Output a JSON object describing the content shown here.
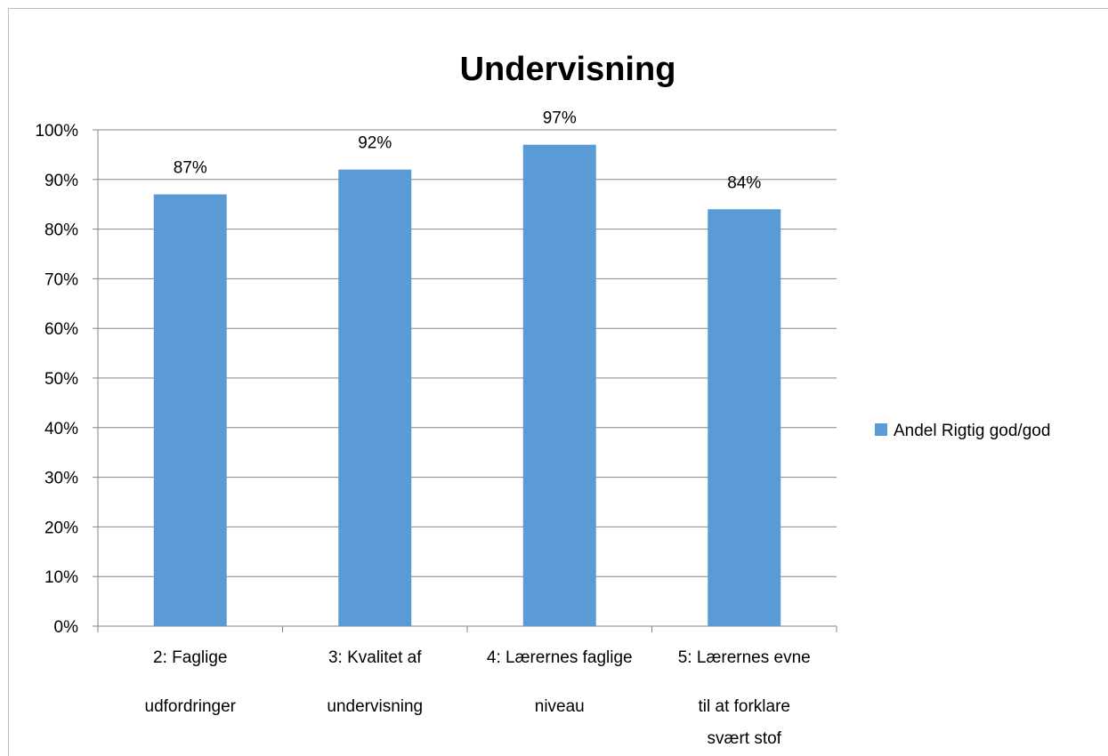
{
  "chart_data": {
    "type": "bar",
    "title": "Undervisning",
    "categories": [
      [
        "2: Faglige",
        "udfordringer"
      ],
      [
        "3: Kvalitet af",
        "undervisning"
      ],
      [
        "4: Lærernes faglige",
        "niveau"
      ],
      [
        "5: Lærernes evne",
        "til at forklare",
        "svært stof"
      ]
    ],
    "series": [
      {
        "name": "Andel Rigtig god/god",
        "values": [
          0.87,
          0.92,
          0.97,
          0.84
        ],
        "data_labels": [
          "87%",
          "92%",
          "97%",
          "84%"
        ],
        "color": "#5b9bd5"
      }
    ],
    "ylim": [
      0,
      1
    ],
    "yticks": [
      0,
      0.1,
      0.2,
      0.3,
      0.4,
      0.5,
      0.6,
      0.7,
      0.8,
      0.9,
      1.0
    ],
    "ytick_labels": [
      "0%",
      "10%",
      "20%",
      "30%",
      "40%",
      "50%",
      "60%",
      "70%",
      "80%",
      "90%",
      "100%"
    ],
    "grid": true,
    "legend_position": "right"
  }
}
